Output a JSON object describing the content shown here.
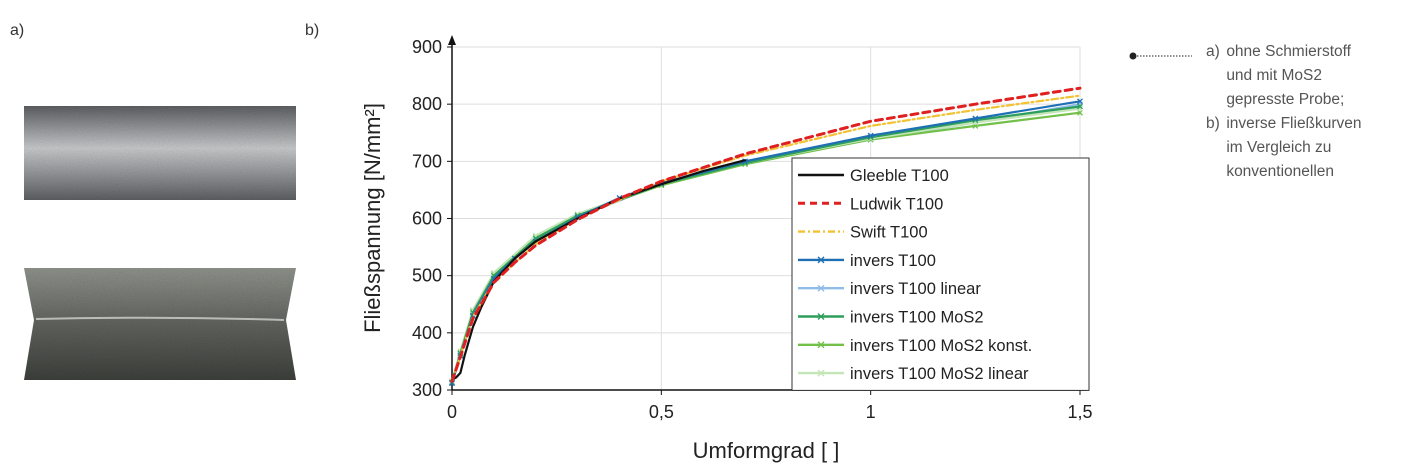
{
  "panels": {
    "a": "a)",
    "b": "b)"
  },
  "images": [
    {
      "name": "specimen-without-lubricant",
      "colors": {
        "base": "#8a8c8f",
        "light": "#c9cacc",
        "dark": "#5d5f62"
      }
    },
    {
      "name": "specimen-with-mos2",
      "colors": {
        "base": "#5f635d",
        "light": "#8e928b",
        "dark": "#3c3f3a"
      }
    }
  ],
  "chart_data": {
    "type": "line",
    "xlabel": "Umformgrad  [ ]",
    "ylabel": "Fließspannung [N/mm²]",
    "xlim": [
      0,
      1.5
    ],
    "ylim": [
      300,
      900
    ],
    "xticks": [
      0,
      0.5,
      1,
      1.5
    ],
    "xtick_labels": [
      "0",
      "0,5",
      "1",
      "1,5"
    ],
    "yticks": [
      300,
      400,
      500,
      600,
      700,
      800,
      900
    ],
    "ytick_labels": [
      "300",
      "400",
      "500",
      "600",
      "700",
      "800",
      "900"
    ],
    "grid": true,
    "legend_position": "bottom-right",
    "series": [
      {
        "name": "Gleeble T100",
        "color": "#111111",
        "style": "solid",
        "x": [
          0,
          0.01,
          0.02,
          0.03,
          0.05,
          0.07,
          0.1,
          0.15,
          0.2,
          0.3,
          0.4,
          0.5,
          0.6,
          0.7
        ],
        "y": [
          318,
          322,
          330,
          360,
          410,
          445,
          490,
          530,
          560,
          600,
          635,
          660,
          683,
          702
        ]
      },
      {
        "name": "Ludwik T100",
        "color": "#e02020",
        "style": "dashed",
        "x": [
          0,
          0.02,
          0.05,
          0.1,
          0.15,
          0.2,
          0.3,
          0.4,
          0.5,
          0.7,
          1.0,
          1.25,
          1.5
        ],
        "y": [
          315,
          358,
          425,
          488,
          523,
          553,
          598,
          635,
          665,
          713,
          770,
          800,
          828
        ]
      },
      {
        "name": "Swift T100",
        "color": "#f2c233",
        "style": "dashdot",
        "x": [
          0,
          0.02,
          0.05,
          0.1,
          0.2,
          0.3,
          0.5,
          0.7,
          1.0,
          1.25,
          1.5
        ],
        "y": [
          315,
          360,
          428,
          490,
          555,
          600,
          665,
          710,
          762,
          790,
          815
        ]
      },
      {
        "name": "invers T100",
        "color": "#1f6fb5",
        "style": "solid",
        "x": [
          0,
          0.02,
          0.05,
          0.1,
          0.15,
          0.2,
          0.3,
          0.4,
          0.5,
          0.7,
          1.0,
          1.25,
          1.5
        ],
        "y": [
          312,
          360,
          430,
          495,
          530,
          560,
          602,
          636,
          662,
          700,
          745,
          775,
          805
        ]
      },
      {
        "name": "invers T100 linear",
        "color": "#8fbde8",
        "style": "solid",
        "x": [
          0,
          0.02,
          0.05,
          0.1,
          0.2,
          0.3,
          0.5,
          0.7,
          1.0,
          1.25,
          1.5
        ],
        "y": [
          312,
          362,
          432,
          497,
          562,
          603,
          660,
          697,
          738,
          768,
          800
        ]
      },
      {
        "name": "invers T100 MoS2",
        "color": "#2e9e5b",
        "style": "solid",
        "x": [
          0,
          0.02,
          0.05,
          0.1,
          0.2,
          0.3,
          0.5,
          0.7,
          1.0,
          1.25,
          1.5
        ],
        "y": [
          313,
          364,
          435,
          500,
          565,
          605,
          660,
          697,
          742,
          772,
          796
        ]
      },
      {
        "name": "invers T100 MoS2 konst.",
        "color": "#72c04a",
        "style": "solid",
        "x": [
          0,
          0.02,
          0.05,
          0.1,
          0.2,
          0.3,
          0.5,
          0.7,
          1.0,
          1.25,
          1.5
        ],
        "y": [
          314,
          366,
          438,
          503,
          568,
          607,
          658,
          695,
          738,
          762,
          785
        ]
      },
      {
        "name": "invers T100 MoS2 linear",
        "color": "#c3e6b6",
        "style": "solid",
        "x": [
          0,
          0.02,
          0.05,
          0.1,
          0.2,
          0.3,
          0.5,
          0.7,
          1.0,
          1.25,
          1.5
        ],
        "y": [
          316,
          368,
          440,
          505,
          570,
          608,
          660,
          697,
          740,
          768,
          792
        ]
      }
    ]
  },
  "caption": {
    "items": [
      {
        "marker": "a)",
        "text": [
          "ohne Schmierstoff",
          "und mit MoS2",
          "gepresste Probe;"
        ]
      },
      {
        "marker": "b)",
        "text": [
          "inverse Fließkurven",
          "im Vergleich zu",
          "konventionellen"
        ]
      }
    ],
    "line_color": "#222222"
  }
}
